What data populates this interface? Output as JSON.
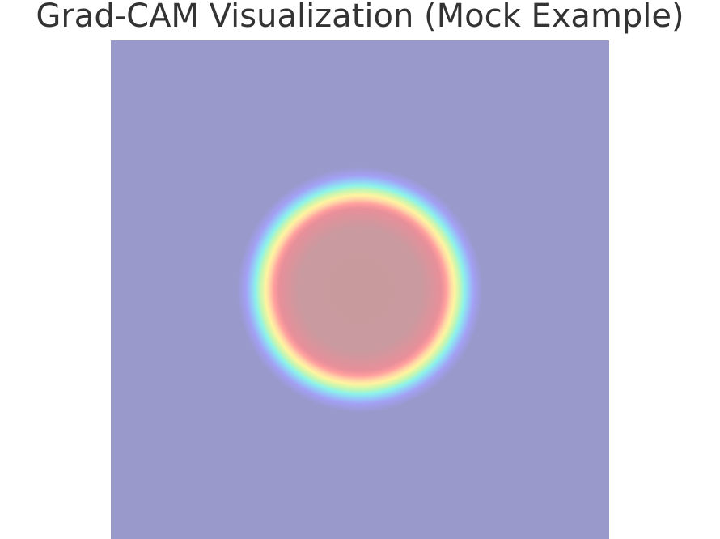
{
  "chart_data": {
    "type": "heatmap",
    "title": "Grad-CAM Visualization (Mock Example)",
    "xlabel": "",
    "ylabel": "",
    "axes": "hidden",
    "grid": false,
    "colorbar": false,
    "colormap": "jet",
    "overlay_alpha": 0.4,
    "background_color": "#9999cc",
    "activation": {
      "shape": "disk",
      "center": [
        0.5,
        0.5
      ],
      "radius_fraction": 0.22,
      "max_value": 1.0,
      "min_value": 0.0
    }
  }
}
